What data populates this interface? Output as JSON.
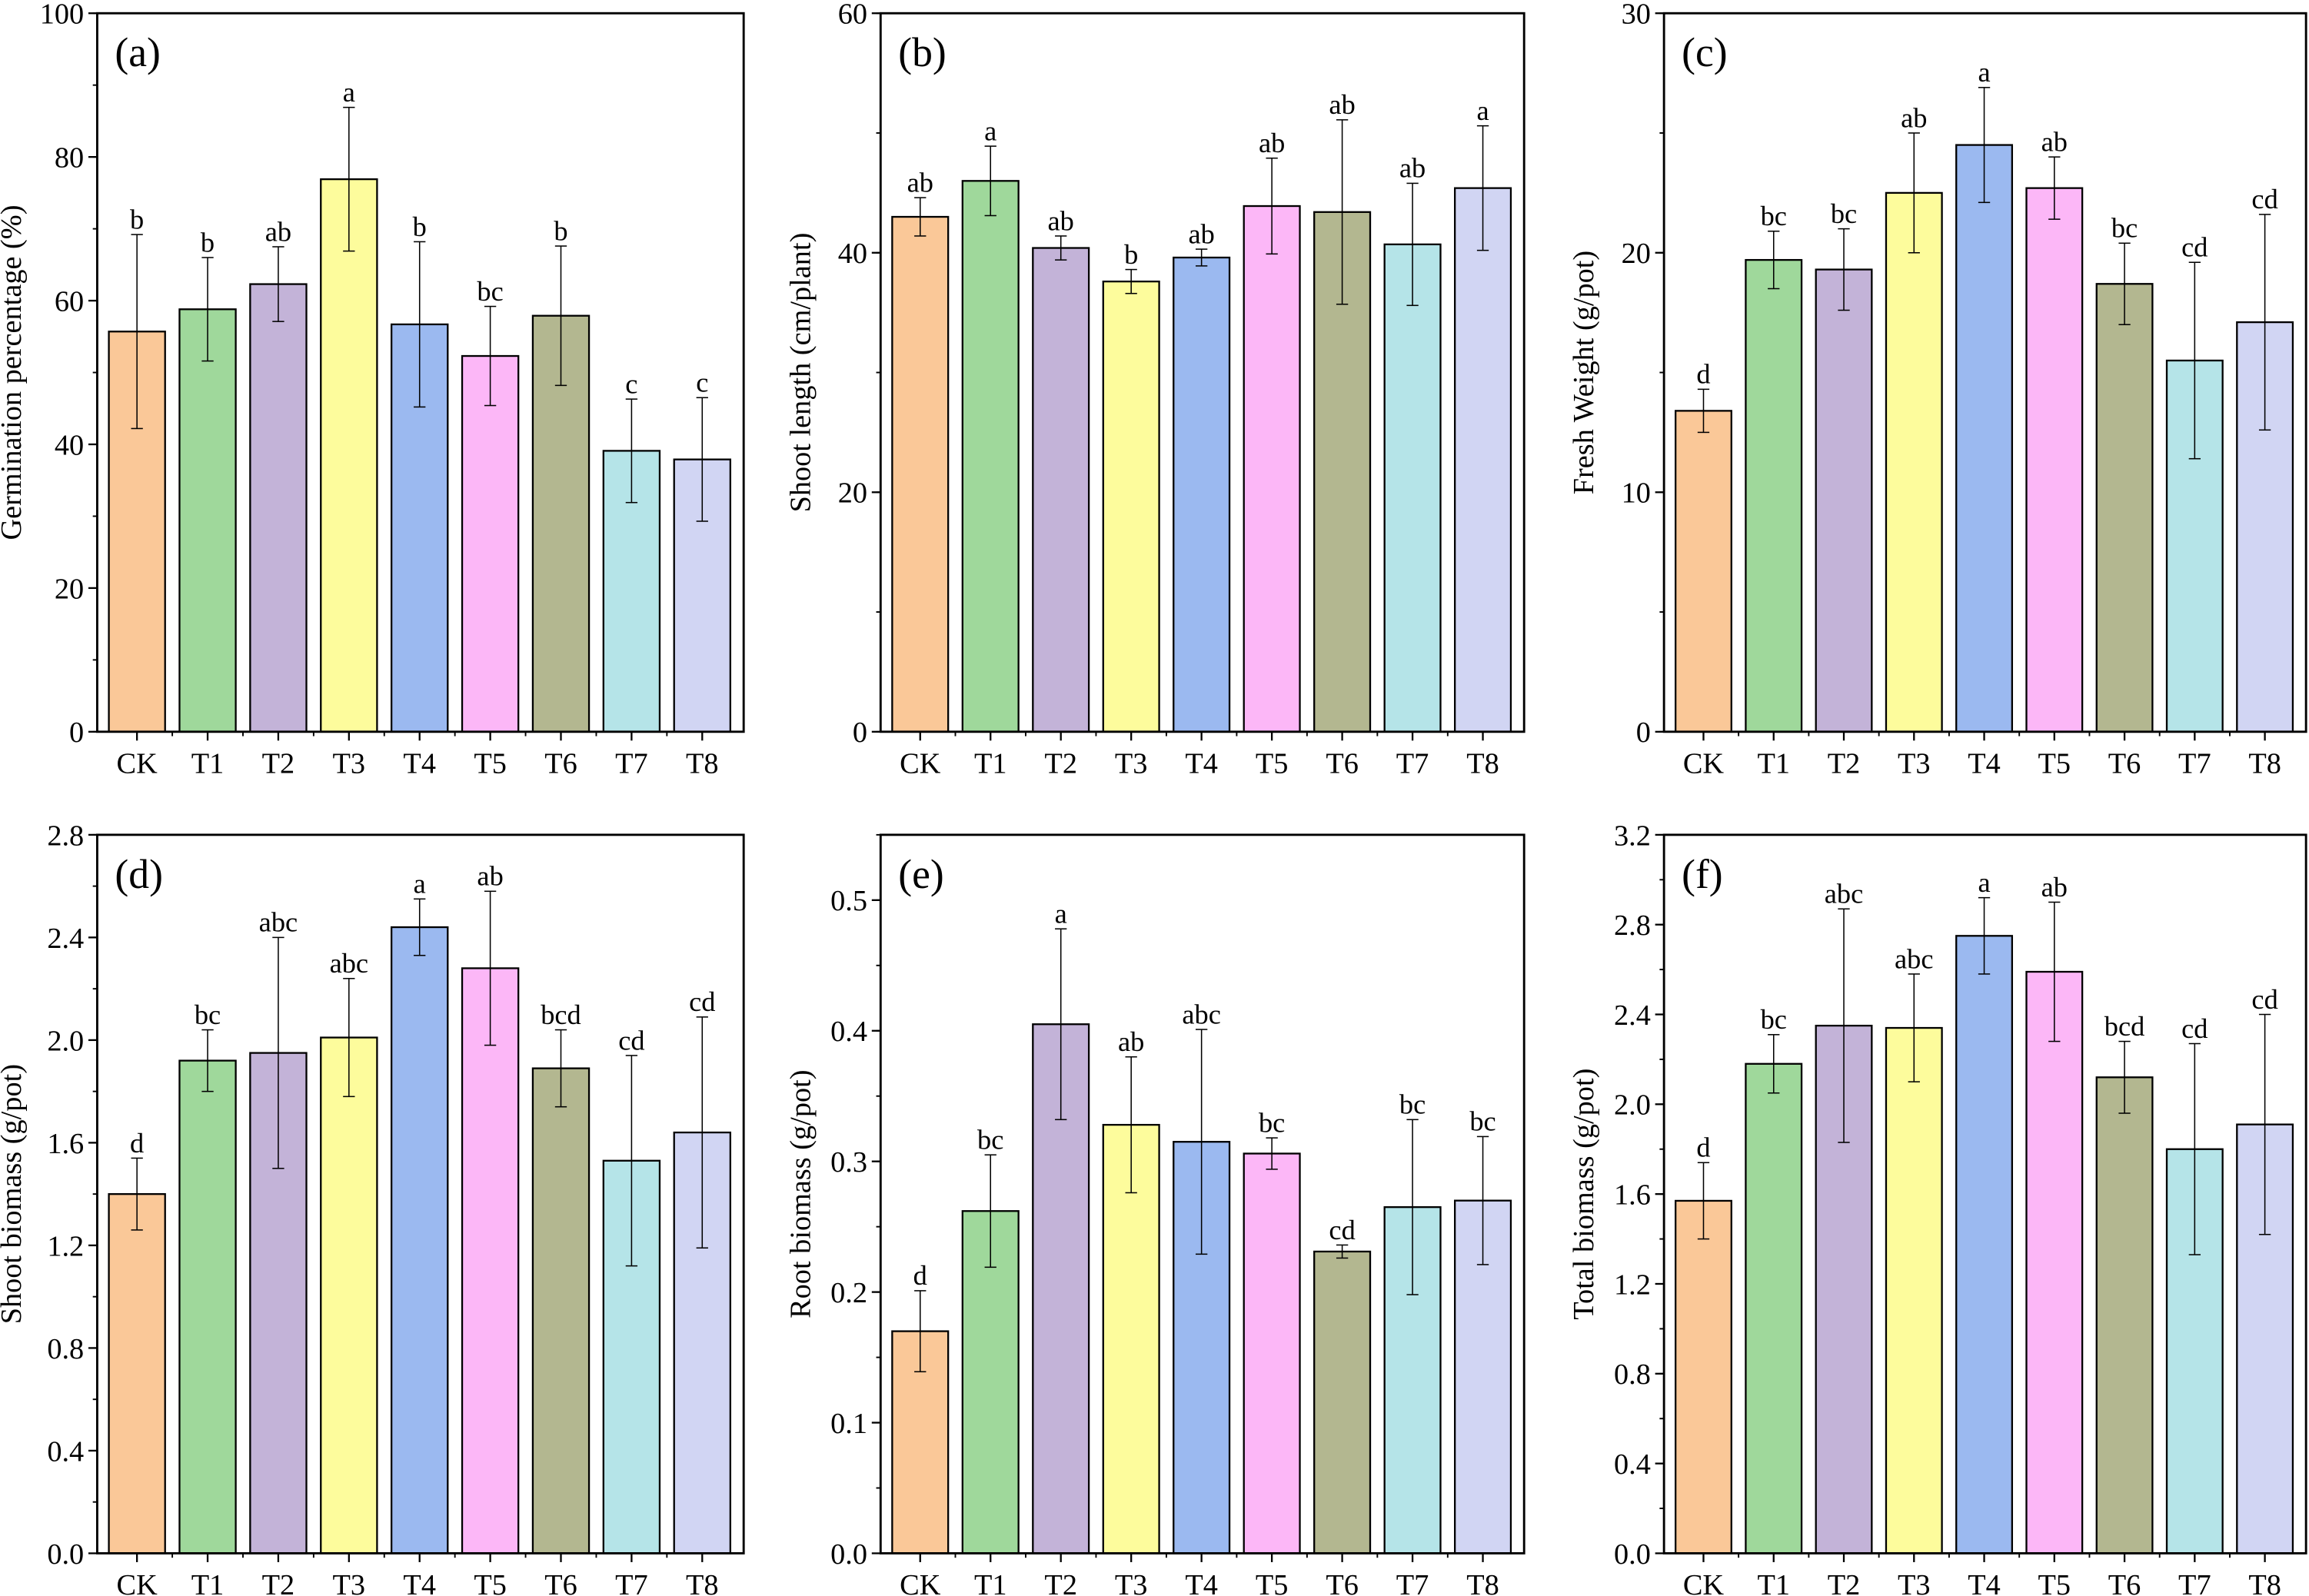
{
  "colors": [
    "#FAC898",
    "#9FD89B",
    "#C3B3D8",
    "#FDFC9C",
    "#9BB9F0",
    "#FCB7F7",
    "#B3B790",
    "#B5E4E8",
    "#D1D5F3"
  ],
  "chart_data": [
    {
      "type": "bar",
      "panel": "(a)",
      "ylabel": "Germination percentage (%)",
      "ylim": [
        0,
        100
      ],
      "yticks": [
        "0",
        "20",
        "40",
        "60",
        "80",
        "100"
      ],
      "ytick_values": [
        0,
        20,
        40,
        60,
        80,
        100
      ],
      "minor_step": 10,
      "categories": [
        "CK",
        "T1",
        "T2",
        "T3",
        "T4",
        "T5",
        "T6",
        "T7",
        "T8"
      ],
      "values": [
        55.7,
        58.8,
        62.3,
        76.9,
        56.7,
        52.3,
        57.9,
        39.1,
        37.9
      ],
      "errors": [
        13.5,
        7.2,
        5.2,
        10.0,
        11.5,
        6.9,
        9.7,
        7.2,
        8.6
      ],
      "letters": [
        "b",
        "b",
        "ab",
        "a",
        "b",
        "bc",
        "b",
        "c",
        "c"
      ]
    },
    {
      "type": "bar",
      "panel": "(b)",
      "ylabel": "Shoot length (cm/plant)",
      "ylim": [
        0,
        60
      ],
      "yticks": [
        "0",
        "20",
        "40",
        "60"
      ],
      "ytick_values": [
        0,
        20,
        40,
        60
      ],
      "minor_step": 10,
      "categories": [
        "CK",
        "T1",
        "T2",
        "T3",
        "T4",
        "T5",
        "T6",
        "T7",
        "T8"
      ],
      "values": [
        43.0,
        46.0,
        40.4,
        37.6,
        39.6,
        43.9,
        43.4,
        40.7,
        45.4
      ],
      "errors": [
        1.6,
        2.9,
        1.0,
        1.0,
        0.7,
        4.0,
        7.7,
        5.1,
        5.2
      ],
      "letters": [
        "ab",
        "a",
        "ab",
        "b",
        "ab",
        "ab",
        "ab",
        "ab",
        "a"
      ]
    },
    {
      "type": "bar",
      "panel": "(c)",
      "ylabel": "Fresh Weight (g/pot)",
      "ylim": [
        0,
        30
      ],
      "yticks": [
        "0",
        "10",
        "20",
        "30"
      ],
      "ytick_values": [
        0,
        10,
        20,
        30
      ],
      "minor_step": 5,
      "categories": [
        "CK",
        "T1",
        "T2",
        "T3",
        "T4",
        "T5",
        "T6",
        "T7",
        "T8"
      ],
      "values": [
        13.4,
        19.7,
        19.3,
        22.5,
        24.5,
        22.7,
        18.7,
        15.5,
        17.1
      ],
      "errors": [
        0.9,
        1.2,
        1.7,
        2.5,
        2.4,
        1.3,
        1.7,
        4.1,
        4.5
      ],
      "letters": [
        "d",
        "bc",
        "bc",
        "ab",
        "a",
        "ab",
        "bc",
        "cd",
        "cd"
      ]
    },
    {
      "type": "bar",
      "panel": "(d)",
      "ylabel": "Shoot biomass (g/pot)",
      "ylim": [
        0,
        2.8
      ],
      "yticks": [
        "0.0",
        "0.4",
        "0.8",
        "1.2",
        "1.6",
        "2.0",
        "2.4",
        "2.8"
      ],
      "ytick_values": [
        0,
        0.4,
        0.8,
        1.2,
        1.6,
        2.0,
        2.4,
        2.8
      ],
      "minor_step": 0.2,
      "categories": [
        "CK",
        "T1",
        "T2",
        "T3",
        "T4",
        "T5",
        "T6",
        "T7",
        "T8"
      ],
      "values": [
        1.4,
        1.92,
        1.95,
        2.01,
        2.44,
        2.28,
        1.89,
        1.53,
        1.64
      ],
      "errors": [
        0.14,
        0.12,
        0.45,
        0.23,
        0.11,
        0.3,
        0.15,
        0.41,
        0.45
      ],
      "letters": [
        "d",
        "bc",
        "abc",
        "abc",
        "a",
        "ab",
        "bcd",
        "cd",
        "cd"
      ]
    },
    {
      "type": "bar",
      "panel": "(e)",
      "ylabel": "Root biomass (g/pot)",
      "ylim": [
        0,
        0.55
      ],
      "yticks": [
        "0.0",
        "0.1",
        "0.2",
        "0.3",
        "0.4",
        "0.5"
      ],
      "ytick_values": [
        0,
        0.1,
        0.2,
        0.3,
        0.4,
        0.5
      ],
      "minor_step": 0.05,
      "categories": [
        "CK",
        "T1",
        "T2",
        "T3",
        "T4",
        "T5",
        "T6",
        "T7",
        "T8"
      ],
      "values": [
        0.17,
        0.262,
        0.405,
        0.328,
        0.315,
        0.306,
        0.231,
        0.265,
        0.27
      ],
      "errors": [
        0.031,
        0.043,
        0.073,
        0.052,
        0.086,
        0.012,
        0.005,
        0.067,
        0.049
      ],
      "letters": [
        "d",
        "bc",
        "a",
        "ab",
        "abc",
        "bc",
        "cd",
        "bc",
        "bc"
      ]
    },
    {
      "type": "bar",
      "panel": "(f)",
      "ylabel": "Total biomass (g/pot)",
      "ylim": [
        0,
        3.2
      ],
      "yticks": [
        "0.0",
        "0.4",
        "0.8",
        "1.2",
        "1.6",
        "2.0",
        "2.4",
        "2.8",
        "3.2"
      ],
      "ytick_values": [
        0,
        0.4,
        0.8,
        1.2,
        1.6,
        2.0,
        2.4,
        2.8,
        3.2
      ],
      "minor_step": 0.2,
      "categories": [
        "CK",
        "T1",
        "T2",
        "T3",
        "T4",
        "T5",
        "T6",
        "T7",
        "T8"
      ],
      "values": [
        1.57,
        2.18,
        2.35,
        2.34,
        2.75,
        2.59,
        2.12,
        1.8,
        1.91
      ],
      "errors": [
        0.17,
        0.13,
        0.52,
        0.24,
        0.17,
        0.31,
        0.16,
        0.47,
        0.49
      ],
      "letters": [
        "d",
        "bc",
        "abc",
        "abc",
        "a",
        "ab",
        "bcd",
        "cd",
        "cd"
      ]
    }
  ]
}
